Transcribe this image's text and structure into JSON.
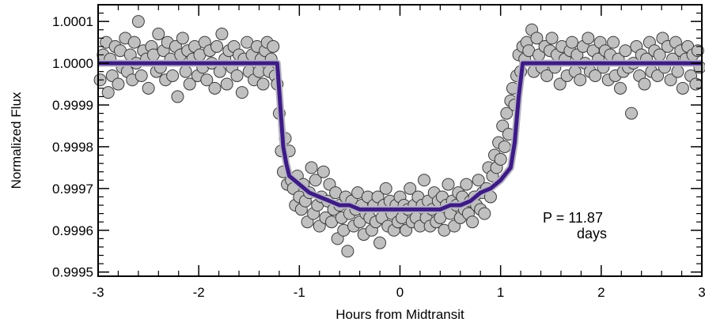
{
  "chart_data": {
    "type": "scatter",
    "title": "",
    "xlabel": "Hours from Midtransit",
    "ylabel": "Normalized Flux",
    "xlim": [
      -3,
      3
    ],
    "ylim": [
      0.99949,
      1.00014
    ],
    "x_ticks": [
      -3,
      -2,
      -1,
      0,
      1,
      2,
      3
    ],
    "x_tick_labels": [
      "-3",
      "-2",
      "-1",
      "0",
      "1",
      "2",
      "3"
    ],
    "y_ticks": [
      0.9995,
      0.9996,
      0.9997,
      0.9998,
      0.9999,
      1.0,
      1.0001
    ],
    "y_tick_labels": [
      "0.9995",
      "0.9996",
      "0.9997",
      "0.9998",
      "0.9999",
      "1.0000",
      "1.0001"
    ],
    "grid": false,
    "annotation": {
      "line1": "P = 11.87",
      "line2": "days"
    },
    "colors": {
      "points_fill": "#c0c0c0",
      "points_edge": "#3a3a3a",
      "model_line": "#3d1c82",
      "model_highlight": "#b7b3c8"
    },
    "series": [
      {
        "kind": "observations",
        "points": [
          [
            -2.98,
            0.99996
          ],
          [
            -2.95,
            1.00002
          ],
          [
            -2.92,
            1.00005
          ],
          [
            -2.9,
            0.99993
          ],
          [
            -2.88,
            1.00001
          ],
          [
            -2.86,
            0.99997
          ],
          [
            -2.83,
            1.00004
          ],
          [
            -2.8,
            0.99995
          ],
          [
            -2.78,
            1.00003
          ],
          [
            -2.76,
            0.99999
          ],
          [
            -2.73,
            1.00006
          ],
          [
            -2.71,
            0.99998
          ],
          [
            -2.68,
            1.00002
          ],
          [
            -2.66,
            0.99996
          ],
          [
            -2.64,
            1.00005
          ],
          [
            -2.62,
            1.0
          ],
          [
            -2.6,
            1.0001
          ],
          [
            -2.57,
            0.99997
          ],
          [
            -2.55,
            1.00003
          ],
          [
            -2.52,
            1.00001
          ],
          [
            -2.5,
            0.99994
          ],
          [
            -2.47,
            1.00004
          ],
          [
            -2.45,
            1.00002
          ],
          [
            -2.42,
            0.99998
          ],
          [
            -2.4,
            1.00007
          ],
          [
            -2.38,
            0.99999
          ],
          [
            -2.35,
            1.00003
          ],
          [
            -2.33,
            0.99996
          ],
          [
            -2.31,
            1.00005
          ],
          [
            -2.28,
            1.00001
          ],
          [
            -2.26,
            0.99997
          ],
          [
            -2.23,
            1.00004
          ],
          [
            -2.21,
            0.99992
          ],
          [
            -2.18,
            1.00002
          ],
          [
            -2.16,
            1.00006
          ],
          [
            -2.13,
            0.99998
          ],
          [
            -2.11,
            1.00003
          ],
          [
            -2.09,
            0.99995
          ],
          [
            -2.06,
            1.00001
          ],
          [
            -2.04,
            1.00004
          ],
          [
            -2.01,
            0.99997
          ],
          [
            -1.99,
            1.00002
          ],
          [
            -1.96,
            0.99999
          ],
          [
            -1.94,
            1.00005
          ],
          [
            -1.92,
            0.99996
          ],
          [
            -1.89,
            1.00003
          ],
          [
            -1.87,
            1.0
          ],
          [
            -1.84,
            0.99994
          ],
          [
            -1.82,
            1.00004
          ],
          [
            -1.79,
            0.99998
          ],
          [
            -1.77,
            1.00007
          ],
          [
            -1.74,
            1.00001
          ],
          [
            -1.72,
            0.99995
          ],
          [
            -1.7,
            1.00003
          ],
          [
            -1.67,
            0.99999
          ],
          [
            -1.65,
            1.00004
          ],
          [
            -1.62,
            0.99997
          ],
          [
            -1.6,
            1.00002
          ],
          [
            -1.57,
            0.99993
          ],
          [
            -1.55,
            1.00001
          ],
          [
            -1.52,
            1.00005
          ],
          [
            -1.5,
            0.99998
          ],
          [
            -1.47,
            1.00002
          ],
          [
            -1.45,
            0.99996
          ],
          [
            -1.42,
            1.00004
          ],
          [
            -1.4,
            0.99998
          ],
          [
            -1.38,
            1.00001
          ],
          [
            -1.36,
            0.99995
          ],
          [
            -1.34,
            1.00003
          ],
          [
            -1.32,
            1.00005
          ],
          [
            -1.3,
            0.99998
          ],
          [
            -1.28,
            1.00001
          ],
          [
            -1.26,
            1.00004
          ],
          [
            -1.24,
            0.99997
          ],
          [
            -1.22,
            0.99995
          ],
          [
            -1.2,
            0.99988
          ],
          [
            -1.18,
            0.99979
          ],
          [
            -1.16,
            0.99974
          ],
          [
            -1.14,
            0.99982
          ],
          [
            -1.12,
            0.99971
          ],
          [
            -1.1,
            0.99979
          ],
          [
            -1.08,
            0.99972
          ],
          [
            -1.06,
            0.9997
          ],
          [
            -1.04,
            0.99966
          ],
          [
            -1.02,
            0.99973
          ],
          [
            -1.0,
            0.99968
          ],
          [
            -0.98,
            0.99965
          ],
          [
            -0.96,
            0.99971
          ],
          [
            -0.94,
            0.99967
          ],
          [
            -0.92,
            0.99962
          ],
          [
            -0.9,
            0.99969
          ],
          [
            -0.88,
            0.99975
          ],
          [
            -0.86,
            0.99964
          ],
          [
            -0.84,
            0.99972
          ],
          [
            -0.82,
            0.99966
          ],
          [
            -0.8,
            0.99961
          ],
          [
            -0.78,
            0.99968
          ],
          [
            -0.76,
            0.99974
          ],
          [
            -0.74,
            0.99963
          ],
          [
            -0.72,
            0.99967
          ],
          [
            -0.7,
            0.99971
          ],
          [
            -0.68,
            0.99962
          ],
          [
            -0.66,
            0.99965
          ],
          [
            -0.64,
            0.99969
          ],
          [
            -0.62,
            0.99958
          ],
          [
            -0.6,
            0.99966
          ],
          [
            -0.58,
            0.99963
          ],
          [
            -0.56,
            0.9996
          ],
          [
            -0.54,
            0.99968
          ],
          [
            -0.52,
            0.99955
          ],
          [
            -0.5,
            0.99964
          ],
          [
            -0.48,
            0.99967
          ],
          [
            -0.46,
            0.99961
          ],
          [
            -0.44,
            0.99965
          ],
          [
            -0.42,
            0.99969
          ],
          [
            -0.4,
            0.99962
          ],
          [
            -0.38,
            0.99966
          ],
          [
            -0.36,
            0.99959
          ],
          [
            -0.34,
            0.99964
          ],
          [
            -0.32,
            0.99968
          ],
          [
            -0.3,
            0.99963
          ],
          [
            -0.28,
            0.9996
          ],
          [
            -0.26,
            0.99966
          ],
          [
            -0.24,
            0.99962
          ],
          [
            -0.22,
            0.99968
          ],
          [
            -0.2,
            0.99957
          ],
          [
            -0.18,
            0.99963
          ],
          [
            -0.16,
            0.99966
          ],
          [
            -0.14,
            0.9997
          ],
          [
            -0.12,
            0.99961
          ],
          [
            -0.1,
            0.99967
          ],
          [
            -0.08,
            0.99964
          ],
          [
            -0.06,
            0.9996
          ],
          [
            -0.04,
            0.99966
          ],
          [
            -0.02,
            0.99962
          ],
          [
            0.0,
            0.99968
          ],
          [
            0.02,
            0.99963
          ],
          [
            0.04,
            0.99966
          ],
          [
            0.06,
            0.9996
          ],
          [
            0.08,
            0.99965
          ],
          [
            0.1,
            0.9997
          ],
          [
            0.12,
            0.99962
          ],
          [
            0.14,
            0.99966
          ],
          [
            0.16,
            0.99963
          ],
          [
            0.18,
            0.99968
          ],
          [
            0.2,
            0.99961
          ],
          [
            0.22,
            0.99966
          ],
          [
            0.24,
            0.99972
          ],
          [
            0.26,
            0.99963
          ],
          [
            0.28,
            0.99967
          ],
          [
            0.3,
            0.99961
          ],
          [
            0.32,
            0.99965
          ],
          [
            0.34,
            0.99969
          ],
          [
            0.36,
            0.99962
          ],
          [
            0.38,
            0.99967
          ],
          [
            0.4,
            0.99963
          ],
          [
            0.42,
            0.99968
          ],
          [
            0.44,
            0.9996
          ],
          [
            0.46,
            0.99966
          ],
          [
            0.48,
            0.99971
          ],
          [
            0.5,
            0.99964
          ],
          [
            0.52,
            0.99967
          ],
          [
            0.54,
            0.99961
          ],
          [
            0.56,
            0.99966
          ],
          [
            0.58,
            0.99969
          ],
          [
            0.6,
            0.99963
          ],
          [
            0.62,
            0.99968
          ],
          [
            0.64,
            0.99965
          ],
          [
            0.66,
            0.99971
          ],
          [
            0.68,
            0.99964
          ],
          [
            0.7,
            0.99967
          ],
          [
            0.72,
            0.99962
          ],
          [
            0.74,
            0.99968
          ],
          [
            0.76,
            0.99966
          ],
          [
            0.78,
            0.99972
          ],
          [
            0.8,
            0.99965
          ],
          [
            0.82,
            0.99969
          ],
          [
            0.84,
            0.99964
          ],
          [
            0.86,
            0.9997
          ],
          [
            0.88,
            0.99975
          ],
          [
            0.9,
            0.99968
          ],
          [
            0.92,
            0.99973
          ],
          [
            0.94,
            0.99978
          ],
          [
            0.96,
            0.99975
          ],
          [
            0.98,
            0.99981
          ],
          [
            1.0,
            0.99977
          ],
          [
            1.02,
            0.99985
          ],
          [
            1.04,
            0.9998
          ],
          [
            1.06,
            0.99988
          ],
          [
            1.08,
            0.99983
          ],
          [
            1.1,
            0.99991
          ],
          [
            1.12,
            0.99994
          ],
          [
            1.14,
            0.9999
          ],
          [
            1.16,
            0.99997
          ],
          [
            1.18,
            1.00002
          ],
          [
            1.2,
            0.99998
          ],
          [
            1.22,
            1.00004
          ],
          [
            1.24,
            1.00001
          ],
          [
            1.26,
            1.00005
          ],
          [
            1.28,
            1.00003
          ],
          [
            1.31,
            1.00008
          ],
          [
            1.33,
            0.99998
          ],
          [
            1.36,
            1.00006
          ],
          [
            1.38,
            1.00002
          ],
          [
            1.41,
            0.99999
          ],
          [
            1.44,
            1.00004
          ],
          [
            1.46,
            0.99997
          ],
          [
            1.49,
            1.00003
          ],
          [
            1.51,
            1.00006
          ],
          [
            1.54,
            0.99999
          ],
          [
            1.56,
            1.00002
          ],
          [
            1.59,
            0.99995
          ],
          [
            1.61,
            1.00004
          ],
          [
            1.64,
            1.00001
          ],
          [
            1.66,
            0.99997
          ],
          [
            1.69,
            1.00003
          ],
          [
            1.71,
            1.00005
          ],
          [
            1.74,
            0.99998
          ],
          [
            1.76,
            1.00002
          ],
          [
            1.79,
            0.99996
          ],
          [
            1.82,
            1.00004
          ],
          [
            1.84,
            1.0
          ],
          [
            1.87,
            1.00006
          ],
          [
            1.89,
            0.99998
          ],
          [
            1.92,
            1.00003
          ],
          [
            1.94,
            0.99997
          ],
          [
            1.97,
            1.00001
          ],
          [
            1.99,
            1.00005
          ],
          [
            2.02,
            0.99999
          ],
          [
            2.04,
            1.00003
          ],
          [
            2.07,
            0.99996
          ],
          [
            2.09,
            1.00002
          ],
          [
            2.12,
            1.00005
          ],
          [
            2.14,
            0.99997
          ],
          [
            2.17,
            1.00001
          ],
          [
            2.19,
            0.99994
          ],
          [
            2.22,
            0.99998
          ],
          [
            2.24,
            1.00003
          ],
          [
            2.27,
            0.99999
          ],
          [
            2.3,
            0.99988
          ],
          [
            2.32,
            1.0
          ],
          [
            2.35,
            1.00004
          ],
          [
            2.38,
            0.99997
          ],
          [
            2.4,
            1.00002
          ],
          [
            2.43,
            0.99995
          ],
          [
            2.45,
            1.00001
          ],
          [
            2.48,
            1.00005
          ],
          [
            2.5,
            0.99998
          ],
          [
            2.53,
            1.00003
          ],
          [
            2.56,
            0.99997
          ],
          [
            2.58,
            1.00002
          ],
          [
            2.61,
            1.00006
          ],
          [
            2.63,
            0.99999
          ],
          [
            2.66,
            1.00004
          ],
          [
            2.69,
            0.99996
          ],
          [
            2.71,
            1.00001
          ],
          [
            2.74,
            1.00005
          ],
          [
            2.76,
            0.99998
          ],
          [
            2.79,
            1.00003
          ],
          [
            2.81,
            0.99994
          ],
          [
            2.84,
            1.00001
          ],
          [
            2.86,
            1.00004
          ],
          [
            2.89,
            0.99997
          ],
          [
            2.91,
            1.00002
          ],
          [
            2.94,
            0.99995
          ],
          [
            2.96,
            1.00003
          ],
          [
            2.98,
            0.99999
          ]
        ]
      },
      {
        "kind": "model",
        "points": [
          [
            -3.0,
            1.0
          ],
          [
            -1.22,
            1.0
          ],
          [
            -1.19,
            0.9999
          ],
          [
            -1.16,
            0.9998
          ],
          [
            -1.13,
            0.99976
          ],
          [
            -1.1,
            0.99973
          ],
          [
            -1.0,
            0.99971
          ],
          [
            -0.9,
            0.99969
          ],
          [
            -0.8,
            0.99968
          ],
          [
            -0.7,
            0.99967
          ],
          [
            -0.6,
            0.99966
          ],
          [
            -0.5,
            0.99966
          ],
          [
            -0.4,
            0.99965
          ],
          [
            -0.3,
            0.99965
          ],
          [
            -0.2,
            0.99965
          ],
          [
            -0.1,
            0.99965
          ],
          [
            0.0,
            0.99965
          ],
          [
            0.1,
            0.99965
          ],
          [
            0.2,
            0.99965
          ],
          [
            0.3,
            0.99965
          ],
          [
            0.4,
            0.99965
          ],
          [
            0.5,
            0.99966
          ],
          [
            0.6,
            0.99966
          ],
          [
            0.7,
            0.99967
          ],
          [
            0.8,
            0.99969
          ],
          [
            0.9,
            0.9997
          ],
          [
            1.0,
            0.99972
          ],
          [
            1.1,
            0.99975
          ],
          [
            1.14,
            0.99981
          ],
          [
            1.18,
            0.99992
          ],
          [
            1.22,
            1.0
          ],
          [
            3.0,
            1.0
          ]
        ]
      }
    ]
  }
}
